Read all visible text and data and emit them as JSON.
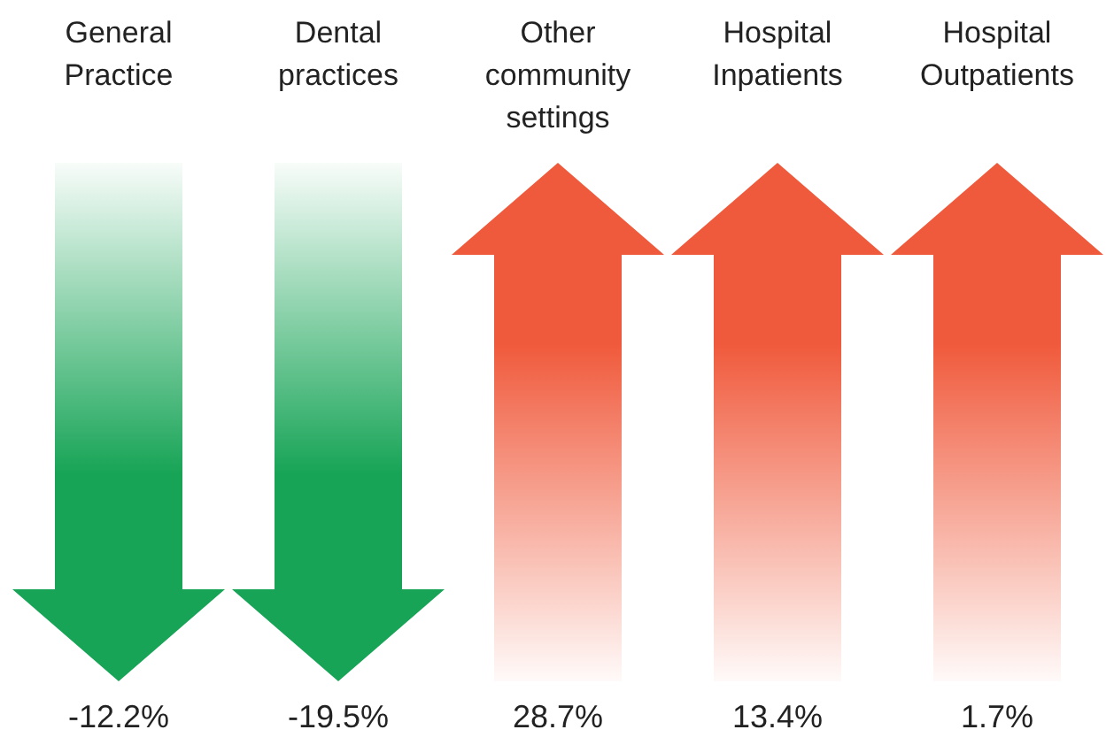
{
  "chart_data": {
    "type": "other",
    "categories": [
      "General Practice",
      "Dental practices",
      "Other community settings",
      "Hospital Inpatients",
      "Hospital Outpatients"
    ],
    "values": [
      -12.2,
      -19.5,
      28.7,
      13.4,
      1.7
    ],
    "value_labels": [
      "-12.2%",
      "-19.5%",
      "28.7%",
      "13.4%",
      "1.7%"
    ],
    "colors": [
      "#17a456",
      "#17a456",
      "#f05a3c",
      "#f05a3c",
      "#f05a3c"
    ]
  }
}
